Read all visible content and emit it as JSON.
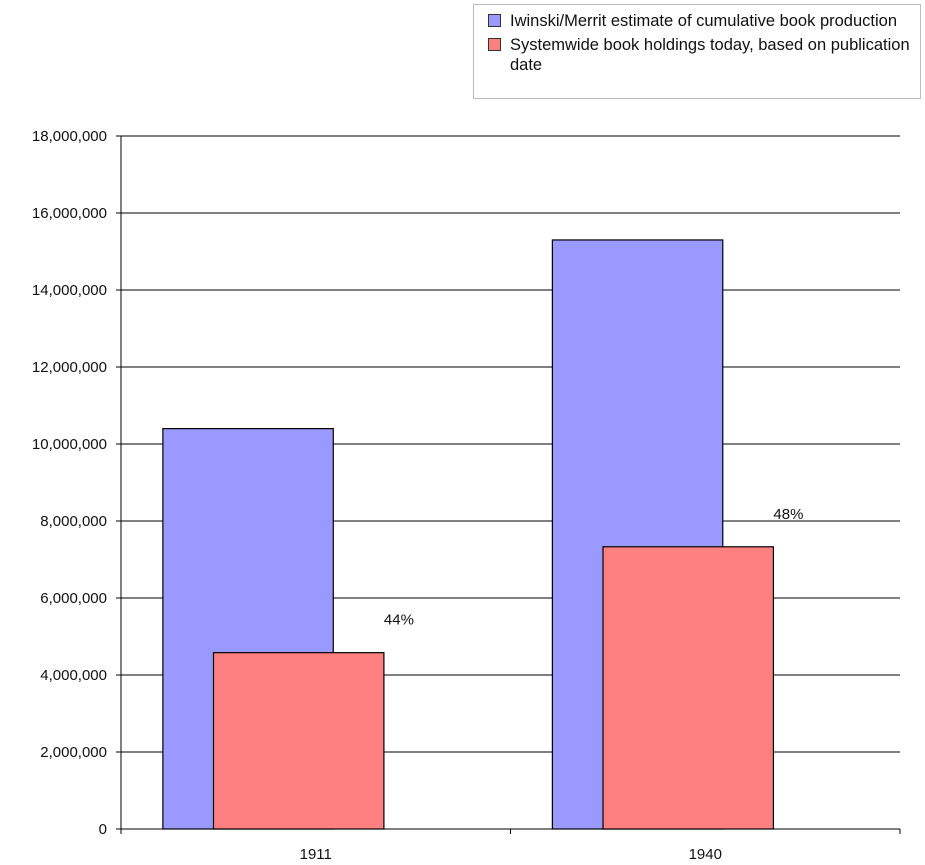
{
  "chart_data": {
    "type": "bar",
    "title": "",
    "xlabel": "",
    "ylabel": "",
    "categories": [
      "1911",
      "1940"
    ],
    "ylim": [
      0,
      18000000
    ],
    "yticks": [
      0,
      2000000,
      4000000,
      6000000,
      8000000,
      10000000,
      12000000,
      14000000,
      16000000,
      18000000
    ],
    "ytick_labels": [
      "0",
      "2,000,000",
      "4,000,000",
      "6,000,000",
      "8,000,000",
      "10,000,000",
      "12,000,000",
      "14,000,000",
      "16,000,000",
      "18,000,000"
    ],
    "grid": true,
    "legend_position": "top-right",
    "series": [
      {
        "name": "Iwinski/Merrit estimate of cumulative book production",
        "values": [
          10400000,
          15300000
        ],
        "color": "#9999ff"
      },
      {
        "name": "Systemwide book holdings today, based on publication date",
        "values": [
          4580000,
          7330000
        ],
        "color": "#ff8080"
      }
    ],
    "annotations": [
      "44%",
      "48%"
    ]
  },
  "legend": {
    "items": [
      {
        "label": "Iwinski/Merrit estimate of cumulative book production",
        "color": "#9999ff"
      },
      {
        "label": "Systemwide book holdings today, based on publication date",
        "color": "#ff8080"
      }
    ]
  }
}
